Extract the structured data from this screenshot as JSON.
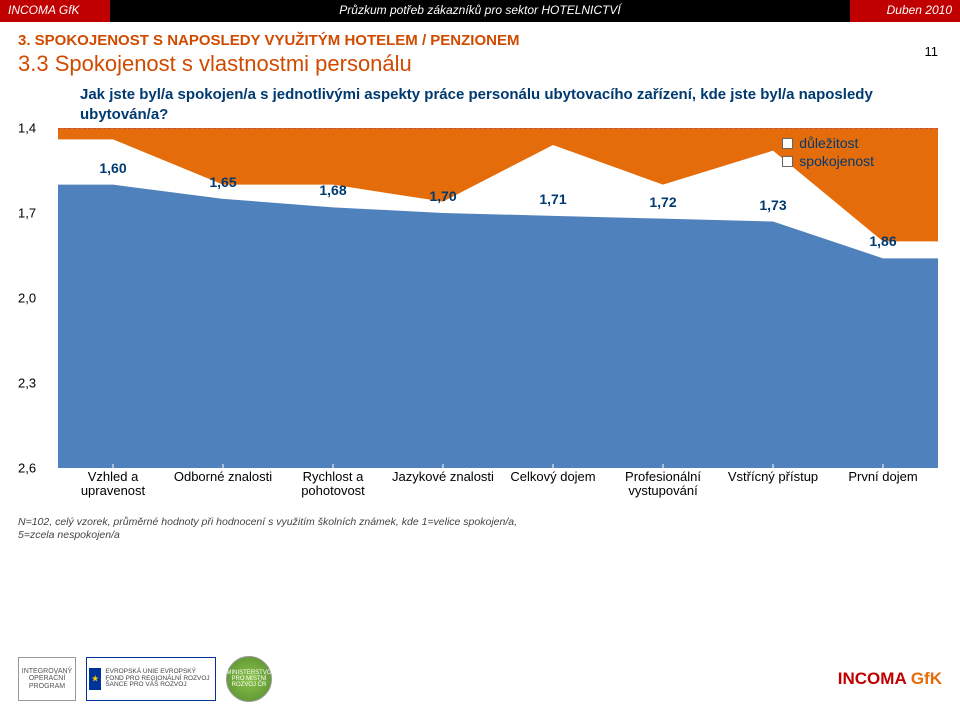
{
  "header": {
    "brand_left": "INCOMA GfK",
    "center": "Průzkum potřeb zákazníků pro sektor HOTELNICTVÍ",
    "right": "Duben 2010"
  },
  "section": {
    "breadcrumb": "3. SPOKOJENOST S NAPOSLEDY VYUŽITÝM HOTELEM / PENZIONEM",
    "title": "3.3 Spokojenost s vlastnostmi personálu"
  },
  "question": "Jak jste byl/a spokojen/a s jednotlivými aspekty práce personálu ubytovacího zařízení, kde jste byl/a naposledy ubytován/a?",
  "page_number": "11",
  "chart": {
    "type": "area",
    "y_ticks": [
      "1,4",
      "1,7",
      "2,0",
      "2,3",
      "2,6"
    ],
    "y_min": 1.4,
    "y_max": 2.6,
    "categories": [
      "Vzhled a upravenost",
      "Odborné znalosti",
      "Rychlost a pohotovost",
      "Jazykové znalosti",
      "Celkový dojem",
      "Profesionální vystupování",
      "Vstřícný přístup",
      "První dojem"
    ],
    "series": [
      {
        "name": "důležitost",
        "color": "#e46c0a",
        "marker": "diamond",
        "values": [
          1.44,
          1.6,
          1.6,
          1.66,
          1.46,
          1.6,
          1.48,
          1.8
        ],
        "show_labels": false,
        "fill_to": 1.4
      },
      {
        "name": "spokojenost",
        "color": "#4f81bd",
        "marker": "square",
        "values": [
          1.6,
          1.65,
          1.68,
          1.7,
          1.71,
          1.72,
          1.73,
          1.86
        ],
        "labels": [
          "1,60",
          "1,65",
          "1,68",
          "1,70",
          "1,71",
          "1,72",
          "1,73",
          "1,86"
        ],
        "label_color": "#003a70",
        "show_labels": true,
        "fill_to": 2.6
      }
    ],
    "background": "#ffffff",
    "gridline_color": "#c0504d"
  },
  "legend": {
    "items": [
      {
        "label": "důležitost",
        "swatch": "#ffffff"
      },
      {
        "label": "spokojenost",
        "swatch": "#ffffff"
      }
    ]
  },
  "footnote": "N=102, celý vzorek, průměrné hodnoty při hodnocení s využitím školních známek, kde 1=velice spokojen/a, 5=zcela nespokojen/a",
  "footer": {
    "logos": [
      "INTEGROVANÝ OPERAČNÍ PROGRAM",
      "EVROPSKÁ UNIE EVROPSKÝ FOND PRO REGIONÁLNÍ ROZVOJ ŠANCE PRO VÁŠ ROZVOJ",
      "MINISTERSTVO PRO MÍSTNÍ ROZVOJ ČR"
    ],
    "brand_incoma": "INCOMA",
    "brand_gfk": "GfK"
  }
}
